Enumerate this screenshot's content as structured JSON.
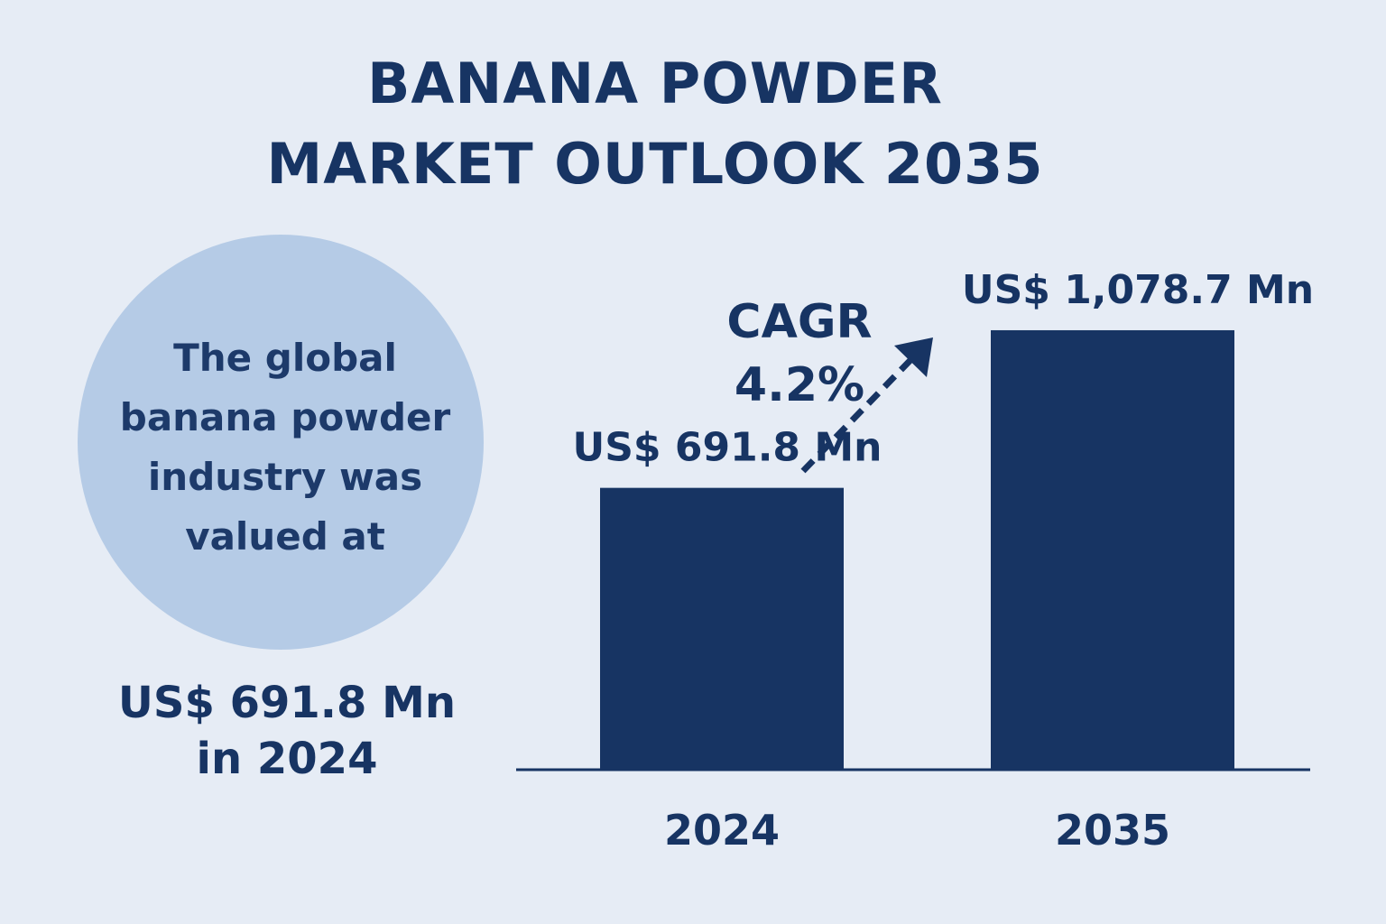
{
  "title": {
    "line1": "BANANA POWDER",
    "line2": "MARKET OUTLOOK 2035"
  },
  "intro": {
    "circle_lines": [
      "The global",
      "banana powder",
      "industry was",
      "valued at"
    ],
    "value_line1": "US$ 691.8 Mn",
    "value_line2": "in 2024"
  },
  "cagr": {
    "label": "CAGR",
    "value": "4.2%"
  },
  "colors": {
    "background": "#e6ecf5",
    "bar": "#173463",
    "circle": "#b5cbe6",
    "text": "#173463"
  },
  "chart_data": {
    "type": "bar",
    "categories": [
      "2024",
      "2035"
    ],
    "values": [
      691.8,
      1078.7
    ],
    "data_labels": [
      "US$ 691.8 Mn",
      "US$ 1,078.7 Mn"
    ],
    "title": "",
    "xlabel": "",
    "ylabel": "",
    "ylim": [
      0,
      1150
    ],
    "grid": false,
    "legend": "none"
  }
}
